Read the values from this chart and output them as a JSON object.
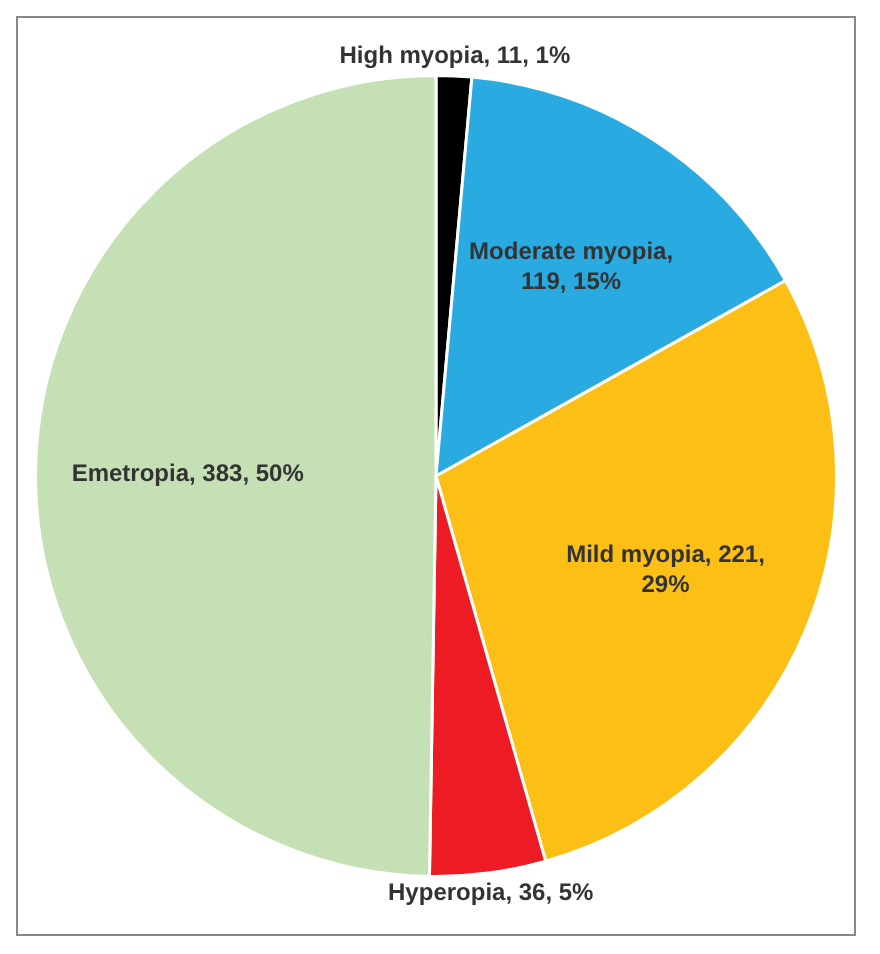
{
  "chart_data": {
    "type": "pie",
    "categories": [
      "High myopia",
      "Moderate myopia",
      "Mild myopia",
      "Hyperopia",
      "Emetropia"
    ],
    "values": [
      11,
      119,
      221,
      36,
      383
    ],
    "value_labels": [
      ", 11, 1%",
      ", 119, 15%",
      ", 221, 29%",
      ", 36, 5%",
      ", 383, 50%"
    ],
    "colors": [
      "#000000",
      "#29abe2",
      "#fbbf16",
      "#ed1c24",
      "#c5e0b4"
    ],
    "legend": false
  }
}
